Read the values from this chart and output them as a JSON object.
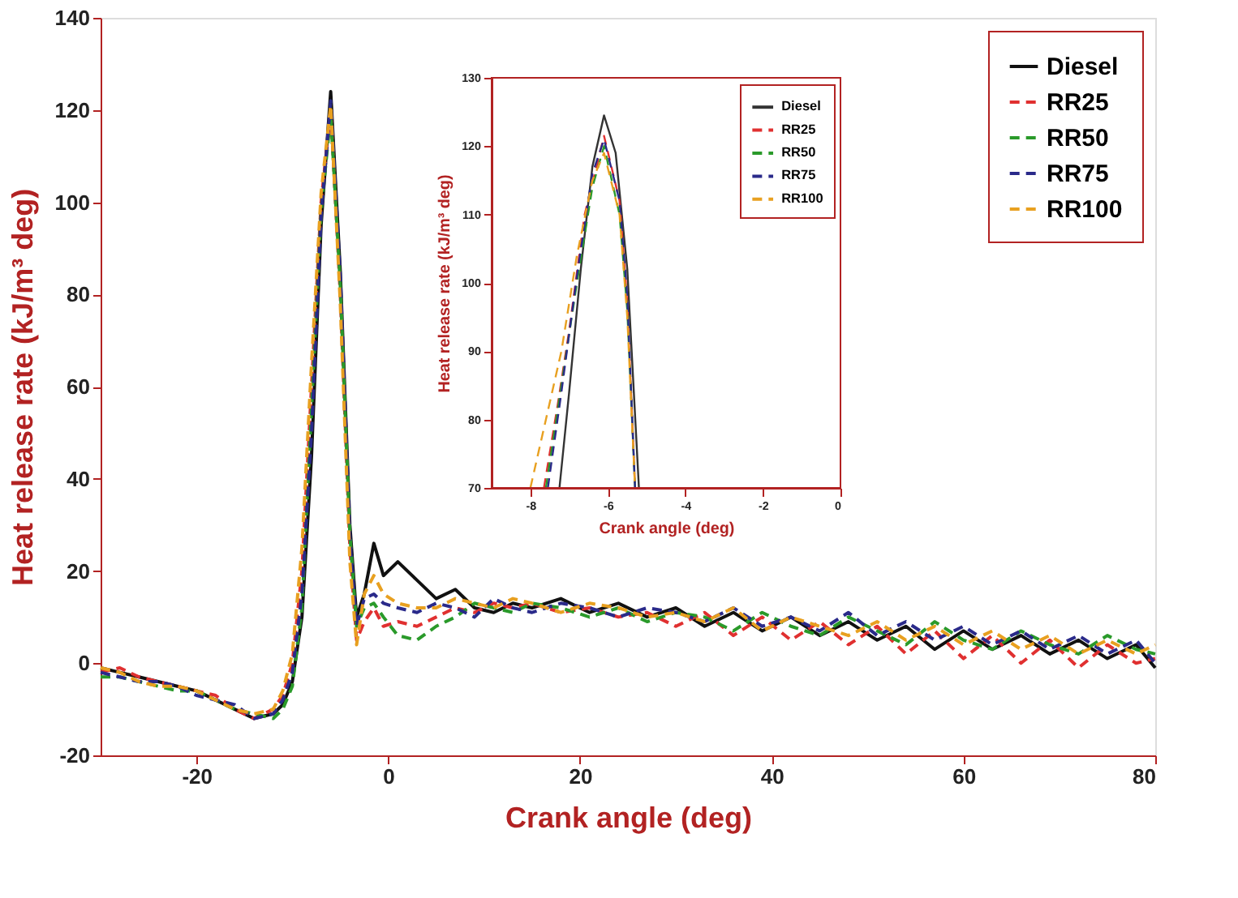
{
  "chart_data": [
    {
      "type": "line",
      "xlabel": "Crank angle (deg)",
      "ylabel": "Heat release rate (kJ/m³ deg)",
      "xlim": [
        -30,
        80
      ],
      "ylim": [
        -20,
        140
      ],
      "xticks": [
        -20,
        0,
        20,
        40,
        60,
        80
      ],
      "yticks": [
        -20,
        0,
        20,
        40,
        60,
        80,
        100,
        120,
        140
      ],
      "grid": false,
      "legend": "top right",
      "marker": "none",
      "series": [
        {
          "name": "Diesel",
          "color": "#111111",
          "line_style": "solid",
          "x": [
            -30,
            -28,
            -26,
            -24,
            -22,
            -20,
            -18,
            -16,
            -14,
            -12,
            -11,
            -10,
            -9,
            -8,
            -7,
            -6,
            -5,
            -4,
            -3.3,
            -2.5,
            -1.5,
            -0.5,
            1,
            3,
            5,
            7,
            9,
            11,
            13,
            15,
            18,
            21,
            24,
            27,
            30,
            33,
            36,
            39,
            42,
            45,
            48,
            51,
            54,
            57,
            60,
            63,
            66,
            69,
            72,
            75,
            78,
            80
          ],
          "values": [
            -1,
            -2,
            -3,
            -4,
            -5,
            -6,
            -8,
            -10,
            -12,
            -11,
            -9,
            -4,
            10,
            45,
            95,
            124,
            85,
            30,
            10,
            15,
            26,
            19,
            22,
            18,
            14,
            16,
            12,
            11,
            13,
            12,
            14,
            11,
            13,
            10,
            12,
            8,
            11,
            7,
            10,
            6,
            9,
            5,
            8,
            3,
            7,
            3,
            6,
            2,
            5,
            1,
            4,
            -1
          ]
        },
        {
          "name": "RR25",
          "color": "#e03030",
          "line_style": "dashed",
          "x": [
            -30,
            -28,
            -26,
            -24,
            -22,
            -20,
            -18,
            -16,
            -14,
            -12,
            -11,
            -10,
            -9,
            -8,
            -7,
            -6,
            -5,
            -4,
            -3.3,
            -2.5,
            -1.5,
            -0.5,
            1,
            3,
            5,
            7,
            9,
            11,
            13,
            15,
            18,
            21,
            24,
            27,
            30,
            33,
            36,
            39,
            42,
            45,
            48,
            51,
            54,
            57,
            60,
            63,
            66,
            69,
            72,
            75,
            78,
            80
          ],
          "values": [
            -2,
            -1,
            -3,
            -4,
            -5,
            -6,
            -7,
            -10,
            -12,
            -10,
            -7,
            0,
            20,
            60,
            100,
            120,
            80,
            25,
            5,
            9,
            12,
            8,
            9,
            8,
            10,
            12,
            11,
            13,
            12,
            13,
            11,
            12,
            10,
            11,
            8,
            11,
            6,
            10,
            5,
            9,
            4,
            8,
            2,
            7,
            1,
            6,
            0,
            5,
            -1,
            4,
            0,
            1
          ]
        },
        {
          "name": "RR50",
          "color": "#2a9a2a",
          "line_style": "dashed",
          "x": [
            -30,
            -28,
            -26,
            -24,
            -22,
            -20,
            -18,
            -16,
            -14,
            -12,
            -11,
            -10,
            -9,
            -8,
            -7,
            -6,
            -5,
            -4,
            -3.3,
            -2.5,
            -1.5,
            -0.5,
            1,
            3,
            5,
            7,
            9,
            11,
            13,
            15,
            18,
            21,
            24,
            27,
            30,
            33,
            36,
            39,
            42,
            45,
            48,
            51,
            54,
            57,
            60,
            63,
            66,
            69,
            72,
            75,
            78,
            80
          ],
          "values": [
            -3,
            -3,
            -4,
            -5,
            -6,
            -6,
            -8,
            -10,
            -11,
            -12,
            -10,
            -5,
            12,
            55,
            98,
            119,
            82,
            28,
            8,
            12,
            13,
            10,
            6,
            5,
            8,
            10,
            13,
            12,
            11,
            13,
            12,
            10,
            12,
            9,
            11,
            10,
            7,
            11,
            8,
            6,
            10,
            7,
            4,
            9,
            5,
            3,
            7,
            4,
            2,
            6,
            3,
            2
          ]
        },
        {
          "name": "RR75",
          "color": "#2a2a8a",
          "line_style": "dashed",
          "x": [
            -30,
            -28,
            -26,
            -24,
            -22,
            -20,
            -18,
            -16,
            -14,
            -12,
            -11,
            -10,
            -9,
            -8,
            -7,
            -6,
            -5,
            -4,
            -3.3,
            -2.5,
            -1.5,
            -0.5,
            1,
            3,
            5,
            7,
            9,
            11,
            13,
            15,
            18,
            21,
            24,
            27,
            30,
            33,
            36,
            39,
            42,
            45,
            48,
            51,
            54,
            57,
            60,
            63,
            66,
            69,
            72,
            75,
            78,
            80
          ],
          "values": [
            -2,
            -3,
            -4,
            -4,
            -5,
            -7,
            -8,
            -9,
            -12,
            -11,
            -8,
            -2,
            15,
            50,
            97,
            122,
            84,
            27,
            8,
            14,
            15,
            13,
            12,
            11,
            13,
            12,
            10,
            14,
            12,
            11,
            13,
            12,
            10,
            12,
            11,
            9,
            12,
            8,
            10,
            7,
            11,
            6,
            9,
            5,
            8,
            4,
            7,
            3,
            6,
            2,
            5,
            0
          ]
        },
        {
          "name": "RR100",
          "color": "#e8a020",
          "line_style": "dashed",
          "x": [
            -30,
            -28,
            -26,
            -24,
            -22,
            -20,
            -18,
            -16,
            -14,
            -12,
            -11,
            -10,
            -9,
            -8,
            -7,
            -6,
            -5,
            -4,
            -3.3,
            -2.5,
            -1.5,
            -0.5,
            1,
            3,
            5,
            7,
            9,
            11,
            13,
            15,
            18,
            21,
            24,
            27,
            30,
            33,
            36,
            39,
            42,
            45,
            48,
            51,
            54,
            57,
            60,
            63,
            66,
            69,
            72,
            75,
            78,
            80
          ],
          "values": [
            -1,
            -2,
            -4,
            -5,
            -5,
            -6,
            -8,
            -10,
            -11,
            -10,
            -6,
            2,
            25,
            65,
            102,
            121,
            78,
            22,
            4,
            15,
            19,
            15,
            13,
            12,
            12,
            14,
            13,
            12,
            14,
            13,
            11,
            13,
            12,
            10,
            11,
            9,
            12,
            7,
            10,
            8,
            6,
            9,
            5,
            8,
            4,
            7,
            3,
            6,
            2,
            5,
            2,
            4
          ]
        }
      ]
    },
    {
      "type": "line",
      "xlabel": "Crank angle (deg)",
      "ylabel": "Heat release rate (kJ/m³ deg)",
      "xlim": [
        -9,
        0
      ],
      "ylim": [
        70,
        130
      ],
      "xticks": [
        -8,
        -6,
        -4,
        -2,
        0
      ],
      "yticks": [
        70,
        80,
        90,
        100,
        110,
        120,
        130
      ],
      "grid": false,
      "legend": "top right",
      "marker": "none",
      "series": [
        {
          "name": "Diesel",
          "color": "#333333",
          "line_style": "solid",
          "x": [
            -7.25,
            -7,
            -6.7,
            -6.4,
            -6.1,
            -5.8,
            -5.5,
            -5.2
          ],
          "values": [
            70,
            84,
            102,
            117,
            124.5,
            119,
            102,
            70
          ]
        },
        {
          "name": "RR25",
          "color": "#e03030",
          "line_style": "dashed",
          "x": [
            -7.65,
            -7.3,
            -7,
            -6.6,
            -6.1,
            -5.7,
            -5.5,
            -5.3
          ],
          "values": [
            70,
            82,
            93,
            110,
            121.5,
            112,
            97,
            70
          ]
        },
        {
          "name": "RR50",
          "color": "#2a9a2a",
          "line_style": "dashed",
          "x": [
            -7.6,
            -7.2,
            -6.8,
            -6.4,
            -6.1,
            -5.7,
            -5.5,
            -5.3
          ],
          "values": [
            70,
            85,
            100,
            114,
            120,
            110,
            96,
            70
          ]
        },
        {
          "name": "RR75",
          "color": "#2a2a8a",
          "line_style": "dashed",
          "x": [
            -7.55,
            -7.2,
            -6.8,
            -6.4,
            -6.1,
            -5.7,
            -5.5,
            -5.3
          ],
          "values": [
            70,
            84,
            101,
            116,
            121,
            112,
            98,
            70
          ]
        },
        {
          "name": "RR100",
          "color": "#e8a020",
          "line_style": "dashed",
          "x": [
            -8,
            -7.6,
            -7.2,
            -6.8,
            -6.4,
            -6.1,
            -5.7,
            -5.5,
            -5.3
          ],
          "values": [
            70,
            80,
            90,
            104,
            115,
            119,
            110,
            95,
            70
          ]
        }
      ]
    }
  ]
}
